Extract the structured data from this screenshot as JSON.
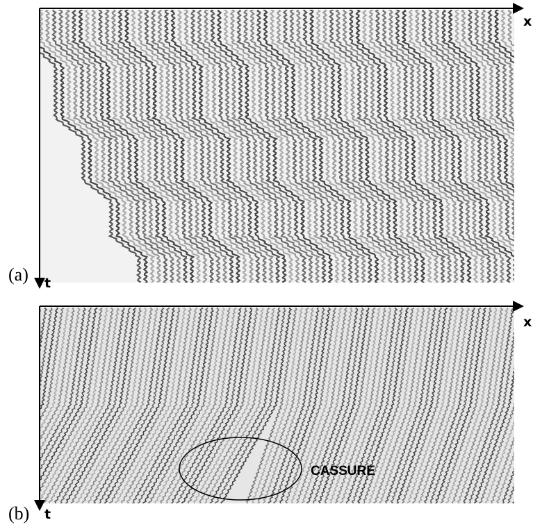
{
  "panel_a": {
    "label": "(a)",
    "x_axis": "x",
    "t_axis": "t"
  },
  "panel_b": {
    "label": "(b)",
    "x_axis": "x",
    "t_axis": "t",
    "annotation": "CASSURE"
  }
}
